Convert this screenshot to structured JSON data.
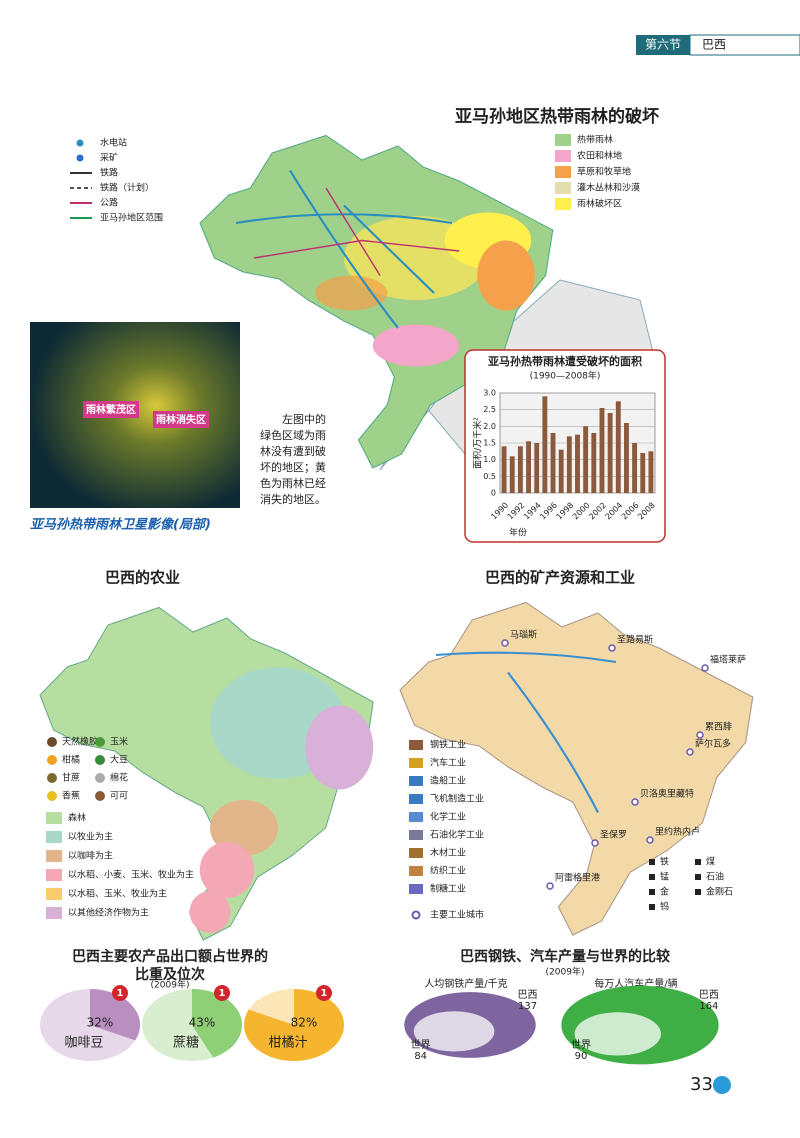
{
  "header": {
    "section": "第六节",
    "title": "巴西"
  },
  "page_number": "33",
  "deforestation_map": {
    "title": "亚马孙地区热带雨林的破坏",
    "symbol_legend": [
      "水电站",
      "采矿",
      "铁路",
      "铁路（计划）",
      "公路",
      "亚马孙地区范围"
    ],
    "area_legend": [
      {
        "label": "热带雨林",
        "color": "#9fd18a"
      },
      {
        "label": "农田和林地",
        "color": "#f4a6c8"
      },
      {
        "label": "草原和牧草地",
        "color": "#f5a04a"
      },
      {
        "label": "灌木丛林和沙漠",
        "color": "#e3ddb0"
      },
      {
        "label": "雨林破坏区",
        "color": "#fff04d"
      }
    ]
  },
  "satellite": {
    "labels": [
      "雨林繁茂区",
      "雨林消失区"
    ],
    "caption": "亚马孙热带雨林卫星影像(局部)",
    "note_lines": [
      "左图中的",
      "绿色区域为雨",
      "林没有遭到破",
      "坏的地区；黄",
      "色为雨林已经",
      "消失的地区。"
    ]
  },
  "agriculture_map": {
    "title": "巴西的农业",
    "crop_legend": [
      "天然橡胶",
      "玉米",
      "柑橘",
      "大豆",
      "甘蔗",
      "棉花",
      "香蕉",
      "可可"
    ],
    "area_legend": [
      {
        "label": "森林",
        "color": "#b6dea0"
      },
      {
        "label": "以牧业为主",
        "color": "#a8d8c8"
      },
      {
        "label": "以咖啡为主",
        "color": "#e2b48a"
      },
      {
        "label": "以水稻、小麦、玉米、牧业为主",
        "color": "#f4a7b5"
      },
      {
        "label": "以水稻、玉米、牧业为主",
        "color": "#f9cc6b"
      },
      {
        "label": "以其他经济作物为主",
        "color": "#d8b0d8"
      }
    ]
  },
  "industry_map": {
    "title": "巴西的矿产资源和工业",
    "industry_legend": [
      "钢铁工业",
      "汽车工业",
      "造船工业",
      "飞机制造工业",
      "化学工业",
      "石油化学工业",
      "木材工业",
      "纺织工业",
      "制糖工业",
      "主要工业城市"
    ],
    "mineral_legend": [
      "铁",
      "煤",
      "锰",
      "石油",
      "金",
      "金刚石",
      "钨"
    ],
    "cities": [
      "马瑙斯",
      "圣路易斯",
      "福塔莱萨",
      "累西腓",
      "萨尔瓦多",
      "贝洛奥里藏特",
      "里约热内卢",
      "圣保罗",
      "阿雷格里港"
    ]
  },
  "chart_data": [
    {
      "type": "bar",
      "title": "亚马孙热带雨林遭受破坏的面积",
      "subtitle": "(1990—2008年)",
      "y_label": "面积/万千米²",
      "x_label": "年份",
      "categories": [
        "1990",
        null,
        "1992",
        null,
        "1994",
        null,
        "1996",
        null,
        "1998",
        null,
        "2000",
        null,
        "2002",
        null,
        "2004",
        null,
        "2006",
        null,
        "2008"
      ],
      "values": [
        1.4,
        1.1,
        1.4,
        1.55,
        1.5,
        2.9,
        1.8,
        1.3,
        1.7,
        1.75,
        2.0,
        1.8,
        2.55,
        2.4,
        2.75,
        2.1,
        1.5,
        1.2,
        1.25
      ],
      "color": "#8b5a3c",
      "ylim": [
        0,
        3
      ],
      "yticks": [
        0,
        0.5,
        {
          "value": 1,
          "label": "1.0"
        },
        1.5,
        {
          "value": 2,
          "label": "2.0"
        },
        2.5,
        {
          "value": 3,
          "label": "3.0"
        }
      ],
      "grid": true
    },
    {
      "type": "share-pie",
      "title": [
        "巴西主要农产品出口额占世界的",
        "比重及位次"
      ],
      "subtitle": "(2009年)",
      "categories": [
        "咖啡豆",
        "蔗糖",
        "柑橘汁"
      ],
      "values": [
        32,
        43,
        82
      ],
      "value_labels": [
        "32%",
        "43%",
        "82%"
      ],
      "ranks": [
        1,
        1,
        1
      ],
      "colors": [
        "#b98fc0",
        "#8fcf76",
        "#f5b52e"
      ]
    },
    {
      "type": "compare",
      "title": "巴西钢铁、汽车产量与世界的比较",
      "subtitle": "(2009年)",
      "categories": [
        "人均钢铁产量/千克",
        "每万人汽车产量/辆"
      ],
      "series": [
        {
          "name": "巴西",
          "values": [
            137,
            164
          ]
        },
        {
          "name": "世界",
          "values": [
            84,
            90
          ]
        }
      ],
      "colors": [
        "#7e65a0",
        "#3fae45"
      ]
    }
  ]
}
